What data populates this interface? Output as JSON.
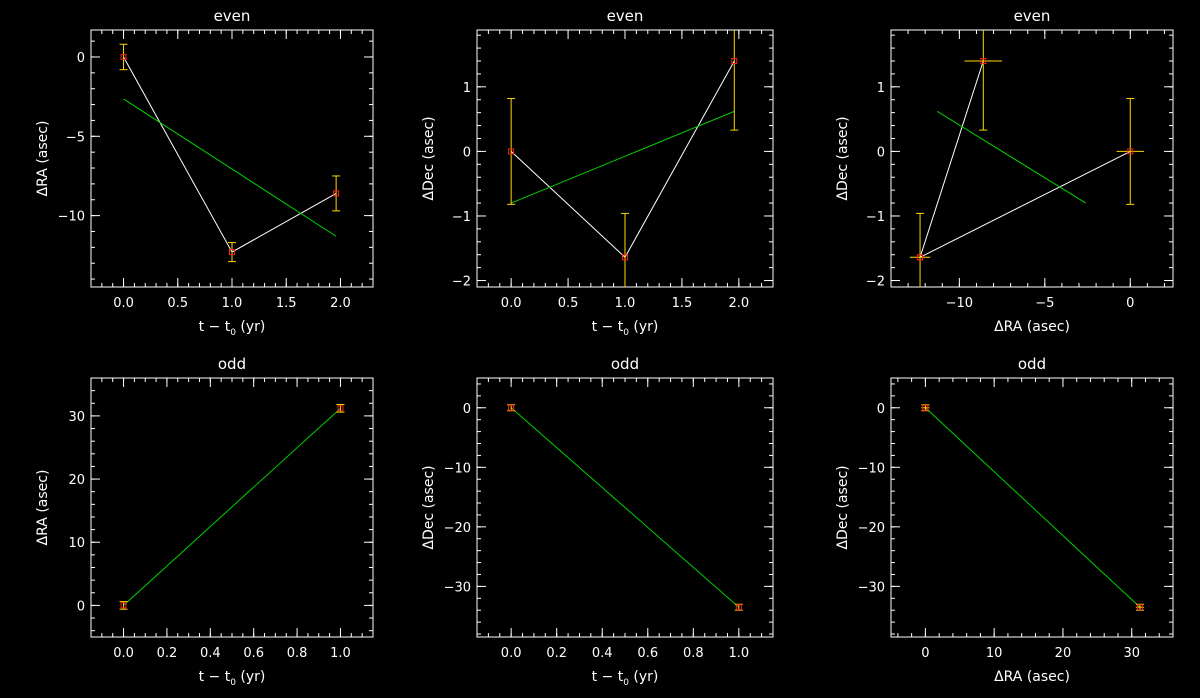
{
  "chart_data": [
    {
      "type": "scatter",
      "title": "even",
      "xlabel": "t − t",
      "xlabel_sub": "0",
      "xlabel_tail": " (yr)",
      "ylabel": "ΔRA (asec)",
      "xlim": [
        -0.3,
        2.3
      ],
      "ylim": [
        -14.5,
        1.7
      ],
      "xticks": [
        0,
        0.5,
        1,
        1.5,
        2
      ],
      "xticklabels": [
        "0.0",
        "0.5",
        "1.0",
        "1.5",
        "2.0"
      ],
      "xminor": 0.1,
      "yticks": [
        -10,
        -5,
        0
      ],
      "yticklabels": [
        "−10",
        "−5",
        "0"
      ],
      "yminor": 1,
      "series": [
        {
          "style": "connect",
          "x": [
            0,
            1,
            1.96
          ],
          "y": [
            0,
            -12.3,
            -8.6
          ],
          "yerr": [
            0.8,
            0.6,
            1.1
          ],
          "xerr": [
            0,
            0,
            0
          ]
        }
      ],
      "fit": {
        "x": [
          0,
          1.96
        ],
        "y": [
          -2.65,
          -11.3
        ]
      }
    },
    {
      "type": "scatter",
      "title": "even",
      "xlabel": "t − t",
      "xlabel_sub": "0",
      "xlabel_tail": " (yr)",
      "ylabel": "ΔDec (asec)",
      "xlim": [
        -0.3,
        2.3
      ],
      "ylim": [
        -2.1,
        1.88
      ],
      "xticks": [
        0,
        0.5,
        1,
        1.5,
        2
      ],
      "xticklabels": [
        "0.0",
        "0.5",
        "1.0",
        "1.5",
        "2.0"
      ],
      "xminor": 0.1,
      "yticks": [
        -2,
        -1,
        0,
        1
      ],
      "yticklabels": [
        "−2",
        "−1",
        "0",
        "1"
      ],
      "yminor": 0.2,
      "series": [
        {
          "style": "connect",
          "x": [
            0,
            1,
            1.96
          ],
          "y": [
            0,
            -1.64,
            1.4
          ],
          "yerr": [
            0.82,
            0.68,
            1.07
          ],
          "xerr": [
            0,
            0,
            0
          ]
        }
      ],
      "fit": {
        "x": [
          0,
          1.96
        ],
        "y": [
          -0.8,
          0.62
        ]
      }
    },
    {
      "type": "scatter",
      "title": "even",
      "xlabel": "ΔRA (asec)",
      "ylabel": "ΔDec (asec)",
      "xlim": [
        -14,
        2.5
      ],
      "ylim": [
        -2.1,
        1.88
      ],
      "xticks": [
        -10,
        -5,
        0
      ],
      "xticklabels": [
        "−10",
        "−5",
        "0"
      ],
      "xminor": 1,
      "yticks": [
        -2,
        -1,
        0,
        1
      ],
      "yticklabels": [
        "−2",
        "−1",
        "0",
        "1"
      ],
      "yminor": 0.2,
      "series": [
        {
          "style": "connect",
          "x": [
            0,
            -12.3,
            -8.6,
            -12.3
          ],
          "y": [
            0,
            -1.64,
            1.4,
            -1.64
          ],
          "yerr": [
            0.82,
            0.68,
            1.07,
            0
          ],
          "xerr": [
            0.8,
            0.6,
            1.1,
            0
          ]
        }
      ],
      "fit": {
        "x": [
          -11.3,
          -2.6
        ],
        "y": [
          0.62,
          -0.8
        ]
      }
    },
    {
      "type": "scatter",
      "title": "odd",
      "xlabel": "t − t",
      "xlabel_sub": "0",
      "xlabel_tail": " (yr)",
      "ylabel": "ΔRA (asec)",
      "xlim": [
        -0.15,
        1.15
      ],
      "ylim": [
        -5,
        36
      ],
      "xticks": [
        0,
        0.2,
        0.4,
        0.6,
        0.8,
        1.0
      ],
      "xticklabels": [
        "0.0",
        "0.2",
        "0.4",
        "0.6",
        "0.8",
        "1.0"
      ],
      "xminor": 0.05,
      "yticks": [
        0,
        10,
        20,
        30
      ],
      "yticklabels": [
        "0",
        "10",
        "20",
        "30"
      ],
      "yminor": 2,
      "series": [
        {
          "style": "none",
          "x": [
            0,
            1
          ],
          "y": [
            0,
            31.2
          ],
          "yerr": [
            0.6,
            0.6
          ],
          "xerr": [
            0,
            0
          ]
        }
      ],
      "fit": {
        "x": [
          0,
          1
        ],
        "y": [
          0,
          31.2
        ]
      }
    },
    {
      "type": "scatter",
      "title": "odd",
      "xlabel": "t − t",
      "xlabel_sub": "0",
      "xlabel_tail": " (yr)",
      "ylabel": "ΔDec (asec)",
      "xlim": [
        -0.15,
        1.15
      ],
      "ylim": [
        -38.5,
        5
      ],
      "xticks": [
        0,
        0.2,
        0.4,
        0.6,
        0.8,
        1.0
      ],
      "xticklabels": [
        "0.0",
        "0.2",
        "0.4",
        "0.6",
        "0.8",
        "1.0"
      ],
      "xminor": 0.05,
      "yticks": [
        -30,
        -20,
        -10,
        0
      ],
      "yticklabels": [
        "−30",
        "−20",
        "−10",
        "0"
      ],
      "yminor": 2,
      "series": [
        {
          "style": "none",
          "x": [
            0,
            1
          ],
          "y": [
            0,
            -33.5
          ],
          "yerr": [
            0.5,
            0.5
          ],
          "xerr": [
            0,
            0
          ]
        }
      ],
      "fit": {
        "x": [
          0,
          1
        ],
        "y": [
          0,
          -33.5
        ]
      }
    },
    {
      "type": "scatter",
      "title": "odd",
      "xlabel": "ΔRA (asec)",
      "ylabel": "ΔDec (asec)",
      "xlim": [
        -5,
        36
      ],
      "ylim": [
        -38.5,
        5
      ],
      "xticks": [
        0,
        10,
        20,
        30
      ],
      "xticklabels": [
        "0",
        "10",
        "20",
        "30"
      ],
      "xminor": 2,
      "yticks": [
        -30,
        -20,
        -10,
        0
      ],
      "yticklabels": [
        "−30",
        "−20",
        "−10",
        "0"
      ],
      "yminor": 2,
      "series": [
        {
          "style": "none",
          "x": [
            0,
            31.2
          ],
          "y": [
            0,
            -33.5
          ],
          "yerr": [
            0.5,
            0.5
          ],
          "xerr": [
            0.6,
            0.6
          ]
        }
      ],
      "fit": {
        "x": [
          0,
          31.2
        ],
        "y": [
          0,
          -33.5
        ]
      }
    }
  ],
  "colors": {
    "background": "#000000",
    "axes": "#ffffff",
    "connect_line": "#ffffff",
    "fit_line": "#00d000",
    "errorbar": "#ffd700",
    "marker": "#ff2020"
  }
}
